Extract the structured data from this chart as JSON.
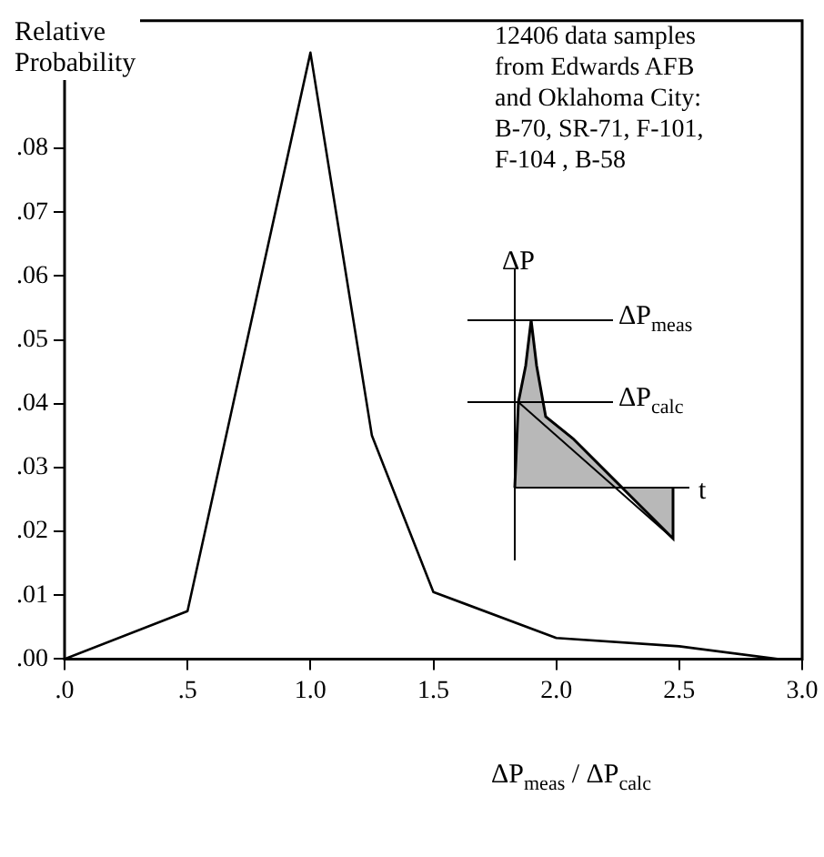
{
  "chart_data": {
    "type": "line",
    "ylabel": "Relative Probability",
    "xlabel": "ΔP$_{meas}$ / ΔP$_{calc}$",
    "x": [
      0,
      0.5,
      1.0,
      1.25,
      1.5,
      2.0,
      2.5,
      2.9,
      3.0
    ],
    "series": [
      {
        "color": "#000000",
        "values": [
          0,
          0.0075,
          0.095,
          0.035,
          0.0105,
          0.0033,
          0.002,
          0,
          0
        ]
      }
    ],
    "xlim": [
      0,
      3
    ],
    "xticks": [
      {
        "value": 0,
        "label": ".0"
      },
      {
        "value": 0.5,
        "label": ".5"
      },
      {
        "value": 1,
        "label": "1.0"
      },
      1.5,
      {
        "value": 2,
        "label": "2.0"
      },
      2.5,
      {
        "value": 3,
        "label": "3.0"
      }
    ],
    "ylim": [
      0,
      0.1
    ],
    "yticks": [
      {
        "value": 0,
        "label": ".00"
      },
      {
        "value": 0.01,
        "label": ".01"
      },
      {
        "value": 0.02,
        "label": ".02"
      },
      {
        "value": 0.03,
        "label": ".03"
      },
      {
        "value": 0.04,
        "label": ".04"
      },
      {
        "value": 0.05,
        "label": ".05"
      },
      {
        "value": 0.06,
        "label": ".06"
      },
      {
        "value": 0.07,
        "label": ".07"
      },
      {
        "value": 0.08,
        "label": ".08"
      }
    ],
    "grid": false,
    "legend": false,
    "marker": "none",
    "line_style": "solid",
    "annotations": [
      "12406 data samples\nfrom Edwards AFB\nand Oklahoma City:\nB-70, SR-71, F-101,\nF-104 , B-58",
      "ΔP",
      "ΔP$_{meas}$",
      "ΔP$_{calc}$",
      "t"
    ]
  }
}
